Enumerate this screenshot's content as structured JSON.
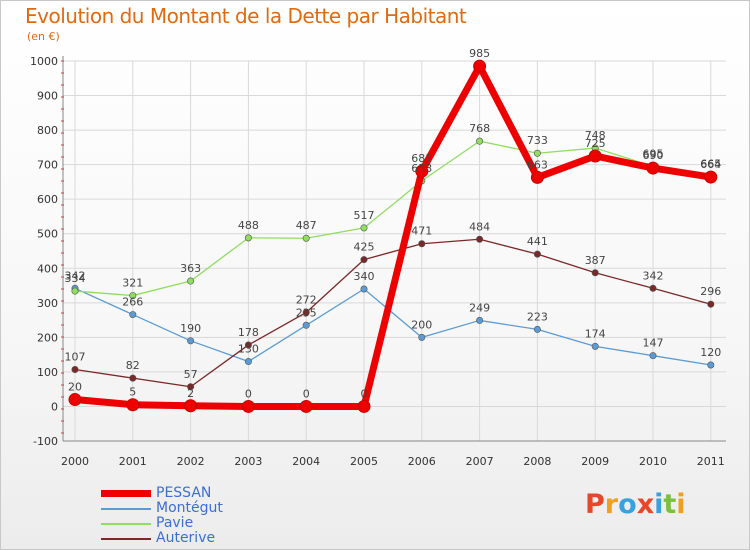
{
  "header": {
    "title": "Evolution du Montant de la Dette par Habitant",
    "unit": "(en €)"
  },
  "colors": {
    "title": "#e06a10",
    "legend_text": "#3b6fd4",
    "grid": "#d9d9d9",
    "axis_text": "#333333"
  },
  "logo": {
    "text": "Proxiti",
    "letter_colors": [
      "#e8462a",
      "#f0a020",
      "#3aa0e0",
      "#e8462a",
      "#3aa0e0",
      "#7cc040",
      "#f0a020"
    ]
  },
  "chart_data": {
    "type": "line",
    "title": "Evolution du Montant de la Dette par Habitant",
    "subtitle": "(en €)",
    "x": [
      "2000",
      "2001",
      "2002",
      "2003",
      "2004",
      "2005",
      "2006",
      "2007",
      "2008",
      "2009",
      "2010",
      "2011"
    ],
    "ylim": [
      -100,
      1000
    ],
    "yticks": [
      "-100",
      "0",
      "100",
      "200",
      "300",
      "400",
      "500",
      "600",
      "700",
      "800",
      "900",
      "1000"
    ],
    "ytick_values": [
      -100,
      0,
      100,
      200,
      300,
      400,
      500,
      600,
      700,
      800,
      900,
      1000
    ],
    "grid": true,
    "legend_position": "bottom-left",
    "series": [
      {
        "name": "PESSAN",
        "color": "#ee0000",
        "values": [
          20,
          5,
          2,
          0,
          0,
          0,
          681,
          985,
          663,
          725,
          690,
          664
        ],
        "labels": [
          "20",
          "5",
          "2",
          "0",
          "0",
          "0",
          "681",
          "985",
          "663",
          "725",
          "690",
          "664"
        ]
      },
      {
        "name": "Montégut",
        "color": "#5b9bd5",
        "values": [
          342,
          266,
          190,
          130,
          235,
          340,
          200,
          249,
          223,
          174,
          147,
          120
        ],
        "labels": [
          "342",
          "266",
          "190",
          "130",
          "235",
          "340",
          "200",
          "249",
          "223",
          "174",
          "147",
          "120"
        ]
      },
      {
        "name": "Pavie",
        "color": "#90dd60",
        "values": [
          334,
          321,
          363,
          488,
          487,
          517,
          653,
          768,
          733,
          748,
          695,
          665
        ],
        "labels": [
          "334",
          "321",
          "363",
          "488",
          "487",
          "517",
          "653",
          "768",
          "733",
          "748",
          "695",
          "665"
        ]
      },
      {
        "name": "Auterive",
        "color": "#7b2828",
        "values": [
          107,
          82,
          57,
          178,
          272,
          425,
          471,
          484,
          441,
          387,
          342,
          296
        ],
        "labels": [
          "107",
          "82",
          "57",
          "178",
          "272",
          "425",
          "471",
          "484",
          "441",
          "387",
          "342",
          "296"
        ]
      }
    ]
  }
}
